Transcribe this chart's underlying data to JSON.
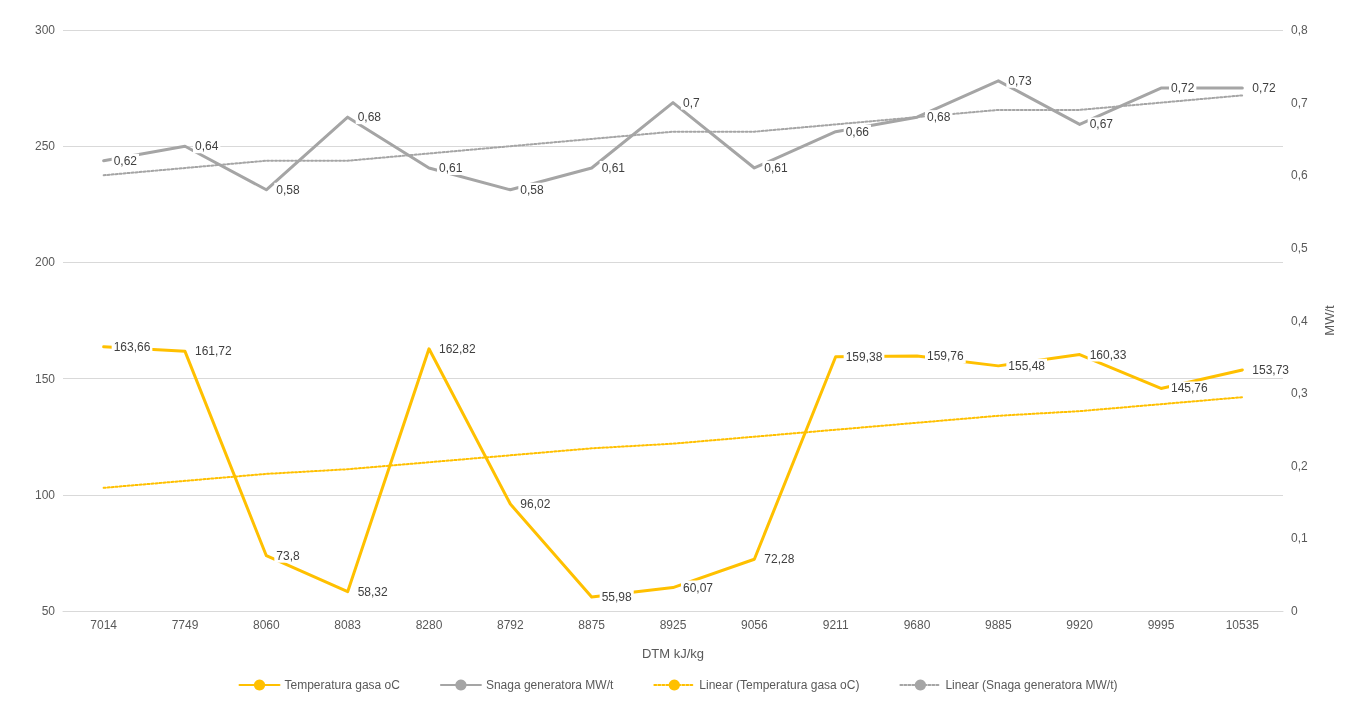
{
  "chart_data": {
    "type": "line",
    "xlabel": "DTM kJ/kg",
    "y2label": "MW/t",
    "categories": [
      "7014",
      "7749",
      "8060",
      "8083",
      "8280",
      "8792",
      "8875",
      "8925",
      "9056",
      "9211",
      "9680",
      "9885",
      "9920",
      "9995",
      "10535"
    ],
    "series": [
      {
        "name": "Temperatura gasa oC",
        "color": "#ffc000",
        "line_style": "solid",
        "values": [
          163.66,
          161.72,
          73.8,
          58.32,
          162.82,
          96.02,
          55.98,
          60.07,
          72.28,
          159.38,
          159.76,
          155.48,
          160.33,
          145.76,
          153.73
        ],
        "value_labels": [
          "163,66",
          "161,72",
          "73,8",
          "58,32",
          "162,82",
          "96,02",
          "55,98",
          "60,07",
          "72,28",
          "159,38",
          "159,76",
          "155,48",
          "160,33",
          "145,76",
          "153,73"
        ]
      },
      {
        "name": "Snaga generatora MW/t",
        "color": "#a5a5a5",
        "axis": "y2",
        "line_style": "solid",
        "values": [
          0.62,
          0.64,
          0.58,
          0.68,
          0.61,
          0.58,
          0.61,
          0.7,
          0.61,
          0.66,
          0.68,
          0.73,
          0.67,
          0.72,
          0.72
        ],
        "value_labels": [
          "0,62",
          "0,64",
          "0,58",
          "0,68",
          "0,61",
          "0,58",
          "0,61",
          "0,7",
          "0,61",
          "0,66",
          "0,68",
          "0,73",
          "0,67",
          "0,72",
          "0,72"
        ]
      },
      {
        "name": "Linear (Temperatura gasa oC)",
        "color": "#ffc000",
        "line_style": "dotted",
        "values": [
          103,
          106,
          109,
          111,
          114,
          117,
          120,
          122,
          125,
          128,
          131,
          134,
          136,
          139,
          142
        ]
      },
      {
        "name": "Linear (Snaga generatora MW/t)",
        "color": "#a5a5a5",
        "axis": "y2",
        "line_style": "dotted",
        "values": [
          0.6,
          0.61,
          0.62,
          0.62,
          0.63,
          0.64,
          0.65,
          0.66,
          0.66,
          0.67,
          0.68,
          0.69,
          0.69,
          0.7,
          0.71
        ]
      }
    ],
    "ylim": [
      50,
      300
    ],
    "yticks": [
      50,
      100,
      150,
      200,
      250,
      300
    ],
    "y2lim": [
      0,
      0.8
    ],
    "y2ticks": [
      0,
      {
        "value": 0.1,
        "label": "0,1"
      },
      {
        "value": 0.2,
        "label": "0,2"
      },
      {
        "value": 0.3,
        "label": "0,3"
      },
      {
        "value": 0.4,
        "label": "0,4"
      },
      {
        "value": 0.5,
        "label": "0,5"
      },
      {
        "value": 0.6,
        "label": "0,6"
      },
      {
        "value": 0.7,
        "label": "0,7"
      },
      {
        "value": 0.8,
        "label": "0,8"
      }
    ],
    "grid": "y",
    "legend": "bottom",
    "marker": "none"
  }
}
